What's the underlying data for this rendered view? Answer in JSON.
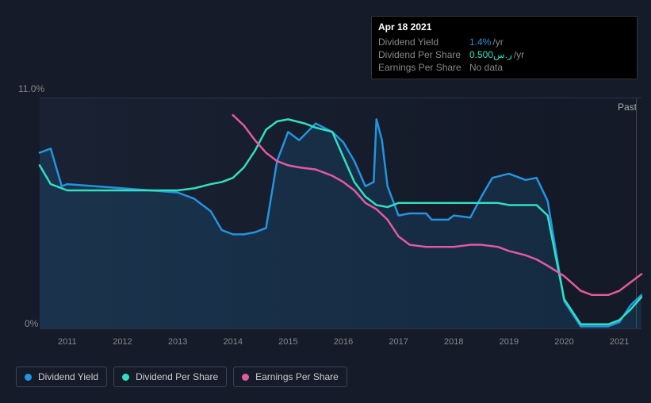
{
  "tooltip": {
    "title": "Apr 18 2021",
    "rows": [
      {
        "label": "Dividend Yield",
        "value": "1.4%",
        "unit": "/yr",
        "color": "#2394df"
      },
      {
        "label": "Dividend Per Share",
        "value": "0.500ر.س",
        "unit": "/yr",
        "color": "#30e0c0"
      },
      {
        "label": "Earnings Per Share",
        "value": "No data",
        "unit": "",
        "color": "#888",
        "nodata": true
      }
    ]
  },
  "chart": {
    "type": "line",
    "y_top_label": "11.0%",
    "y_bot_label": "0%",
    "past_label": "Past",
    "background": "#151b29",
    "grid_color": "#2a3448",
    "x_start": 2010.5,
    "x_end": 2021.4,
    "x_ticks": [
      2011,
      2012,
      2013,
      2014,
      2015,
      2016,
      2017,
      2018,
      2019,
      2020,
      2021
    ],
    "vline_x": 2021.3,
    "ylim": [
      0,
      11
    ],
    "series": [
      {
        "name": "Dividend Yield",
        "color": "#2394df",
        "width": 2.5,
        "fill": "rgba(35,148,223,0.15)",
        "points": [
          [
            2010.5,
            8.4
          ],
          [
            2010.7,
            8.6
          ],
          [
            2010.9,
            6.8
          ],
          [
            2011.0,
            6.9
          ],
          [
            2011.5,
            6.8
          ],
          [
            2012.0,
            6.7
          ],
          [
            2012.5,
            6.6
          ],
          [
            2013.0,
            6.5
          ],
          [
            2013.3,
            6.2
          ],
          [
            2013.6,
            5.6
          ],
          [
            2013.8,
            4.7
          ],
          [
            2014.0,
            4.5
          ],
          [
            2014.2,
            4.5
          ],
          [
            2014.4,
            4.6
          ],
          [
            2014.6,
            4.8
          ],
          [
            2014.8,
            8.0
          ],
          [
            2015.0,
            9.4
          ],
          [
            2015.2,
            9.0
          ],
          [
            2015.5,
            9.8
          ],
          [
            2015.8,
            9.4
          ],
          [
            2016.0,
            8.9
          ],
          [
            2016.2,
            8.0
          ],
          [
            2016.4,
            6.8
          ],
          [
            2016.55,
            7.0
          ],
          [
            2016.6,
            10.0
          ],
          [
            2016.7,
            9.0
          ],
          [
            2016.8,
            6.8
          ],
          [
            2017.0,
            5.4
          ],
          [
            2017.2,
            5.5
          ],
          [
            2017.5,
            5.5
          ],
          [
            2017.6,
            5.2
          ],
          [
            2017.9,
            5.2
          ],
          [
            2018.0,
            5.4
          ],
          [
            2018.3,
            5.3
          ],
          [
            2018.5,
            6.3
          ],
          [
            2018.7,
            7.2
          ],
          [
            2019.0,
            7.4
          ],
          [
            2019.3,
            7.1
          ],
          [
            2019.5,
            7.2
          ],
          [
            2019.7,
            6.1
          ],
          [
            2020.0,
            1.3
          ],
          [
            2020.3,
            0.1
          ],
          [
            2020.5,
            0.1
          ],
          [
            2020.8,
            0.1
          ],
          [
            2021.0,
            0.3
          ],
          [
            2021.2,
            1.1
          ],
          [
            2021.4,
            1.6
          ]
        ]
      },
      {
        "name": "Dividend Per Share",
        "color": "#30e0c0",
        "width": 2.5,
        "points": [
          [
            2010.5,
            7.8
          ],
          [
            2010.7,
            6.9
          ],
          [
            2011.0,
            6.6
          ],
          [
            2011.5,
            6.6
          ],
          [
            2012.0,
            6.6
          ],
          [
            2012.5,
            6.6
          ],
          [
            2013.0,
            6.6
          ],
          [
            2013.3,
            6.7
          ],
          [
            2013.6,
            6.9
          ],
          [
            2013.8,
            7.0
          ],
          [
            2014.0,
            7.2
          ],
          [
            2014.2,
            7.7
          ],
          [
            2014.4,
            8.5
          ],
          [
            2014.6,
            9.5
          ],
          [
            2014.8,
            9.9
          ],
          [
            2015.0,
            10.0
          ],
          [
            2015.3,
            9.8
          ],
          [
            2015.5,
            9.6
          ],
          [
            2015.8,
            9.4
          ],
          [
            2016.0,
            8.2
          ],
          [
            2016.2,
            7.0
          ],
          [
            2016.4,
            6.3
          ],
          [
            2016.6,
            5.9
          ],
          [
            2016.8,
            5.8
          ],
          [
            2017.0,
            6.0
          ],
          [
            2017.3,
            6.0
          ],
          [
            2017.5,
            6.0
          ],
          [
            2017.8,
            6.0
          ],
          [
            2018.0,
            6.0
          ],
          [
            2018.3,
            6.0
          ],
          [
            2018.5,
            6.0
          ],
          [
            2018.8,
            6.0
          ],
          [
            2019.0,
            5.9
          ],
          [
            2019.3,
            5.9
          ],
          [
            2019.5,
            5.9
          ],
          [
            2019.7,
            5.4
          ],
          [
            2020.0,
            1.4
          ],
          [
            2020.3,
            0.2
          ],
          [
            2020.5,
            0.2
          ],
          [
            2020.8,
            0.2
          ],
          [
            2021.0,
            0.4
          ],
          [
            2021.2,
            0.9
          ],
          [
            2021.4,
            1.5
          ]
        ]
      },
      {
        "name": "Earnings Per Share",
        "color": "#e559a0",
        "width": 2.5,
        "points": [
          [
            2014.0,
            10.2
          ],
          [
            2014.2,
            9.7
          ],
          [
            2014.4,
            9.0
          ],
          [
            2014.6,
            8.4
          ],
          [
            2014.8,
            8.0
          ],
          [
            2015.0,
            7.8
          ],
          [
            2015.2,
            7.7
          ],
          [
            2015.5,
            7.6
          ],
          [
            2015.8,
            7.3
          ],
          [
            2016.0,
            7.0
          ],
          [
            2016.2,
            6.6
          ],
          [
            2016.4,
            6.0
          ],
          [
            2016.6,
            5.7
          ],
          [
            2016.8,
            5.2
          ],
          [
            2017.0,
            4.4
          ],
          [
            2017.2,
            4.0
          ],
          [
            2017.5,
            3.9
          ],
          [
            2017.8,
            3.9
          ],
          [
            2018.0,
            3.9
          ],
          [
            2018.3,
            4.0
          ],
          [
            2018.5,
            4.0
          ],
          [
            2018.8,
            3.9
          ],
          [
            2019.0,
            3.7
          ],
          [
            2019.3,
            3.5
          ],
          [
            2019.5,
            3.3
          ],
          [
            2019.7,
            3.0
          ],
          [
            2020.0,
            2.5
          ],
          [
            2020.3,
            1.8
          ],
          [
            2020.5,
            1.6
          ],
          [
            2020.8,
            1.6
          ],
          [
            2021.0,
            1.8
          ],
          [
            2021.2,
            2.2
          ],
          [
            2021.4,
            2.6
          ]
        ]
      }
    ]
  },
  "legend": [
    {
      "label": "Dividend Yield",
      "color": "#2394df"
    },
    {
      "label": "Dividend Per Share",
      "color": "#30e0c0"
    },
    {
      "label": "Earnings Per Share",
      "color": "#e559a0"
    }
  ]
}
